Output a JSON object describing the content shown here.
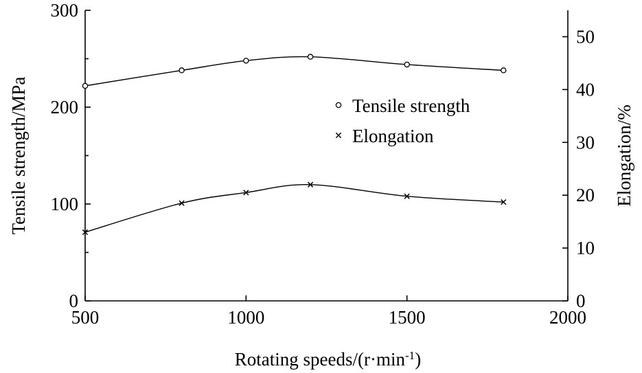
{
  "chart_data": {
    "type": "line",
    "xlabel": "Rotating speeds/(r·min",
    "xlabel_sup": "-1",
    "xlabel_tail": ")",
    "ylabel_left": "Tensile strength/MPa",
    "ylabel_right": "Elongation/%",
    "xlim": [
      500,
      2000
    ],
    "ylim_left": [
      0,
      300
    ],
    "ylim_right": [
      0,
      55
    ],
    "x_ticks": [
      500,
      1000,
      1500,
      2000
    ],
    "x_tick_labels": [
      "500",
      "1000",
      "1500",
      "2000"
    ],
    "y_left_ticks": [
      0,
      100,
      200,
      300
    ],
    "y_left_tick_labels": [
      "0",
      "100",
      "200",
      "300"
    ],
    "y_left_minor_ticks": [
      50,
      150,
      250
    ],
    "y_right_ticks": [
      0,
      10,
      20,
      30,
      40,
      50
    ],
    "y_right_tick_labels": [
      "0",
      "10",
      "20",
      "30",
      "40",
      "50"
    ],
    "grid": false,
    "legend_position": "center-right",
    "series": [
      {
        "name": "Tensile strength",
        "axis": "left",
        "marker": "circle",
        "x": [
          500,
          800,
          1000,
          1200,
          1500,
          1800
        ],
        "y": [
          222,
          238,
          248,
          252,
          244,
          238
        ]
      },
      {
        "name": "Elongation",
        "axis": "right",
        "marker": "cross",
        "x": [
          500,
          800,
          1000,
          1200,
          1500,
          1800
        ],
        "y": [
          13.0,
          18.5,
          20.5,
          22.0,
          19.8,
          18.7
        ]
      }
    ]
  }
}
